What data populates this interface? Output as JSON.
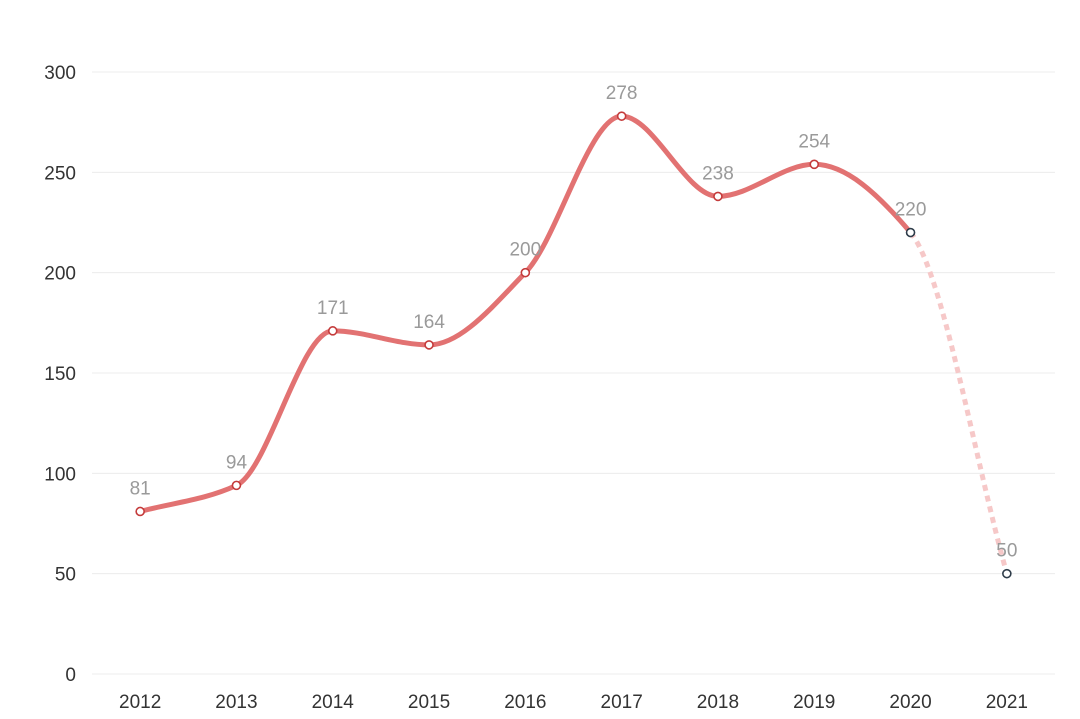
{
  "chart_data": {
    "type": "line",
    "title": "",
    "xlabel": "",
    "ylabel": "",
    "categories": [
      "2012",
      "2013",
      "2014",
      "2015",
      "2016",
      "2017",
      "2018",
      "2019",
      "2020",
      "2021"
    ],
    "values": [
      81,
      94,
      171,
      164,
      200,
      278,
      238,
      254,
      220,
      50
    ],
    "ylim": [
      0,
      300
    ],
    "yticks": [
      0,
      50,
      100,
      150,
      200,
      250,
      300
    ],
    "grid": true,
    "legend": "none",
    "line_style": "smooth",
    "solid_through_category": "2020",
    "dashed_from_category": "2020",
    "colors": {
      "line": "#e27272",
      "dashed_line": "#f6c8c8",
      "marker_stroke": "#c43b3b",
      "forecast_marker_stroke": "#2f3d4a",
      "label": "#9a9a9a",
      "axis_text": "#333333",
      "grid": "#ececec"
    }
  }
}
